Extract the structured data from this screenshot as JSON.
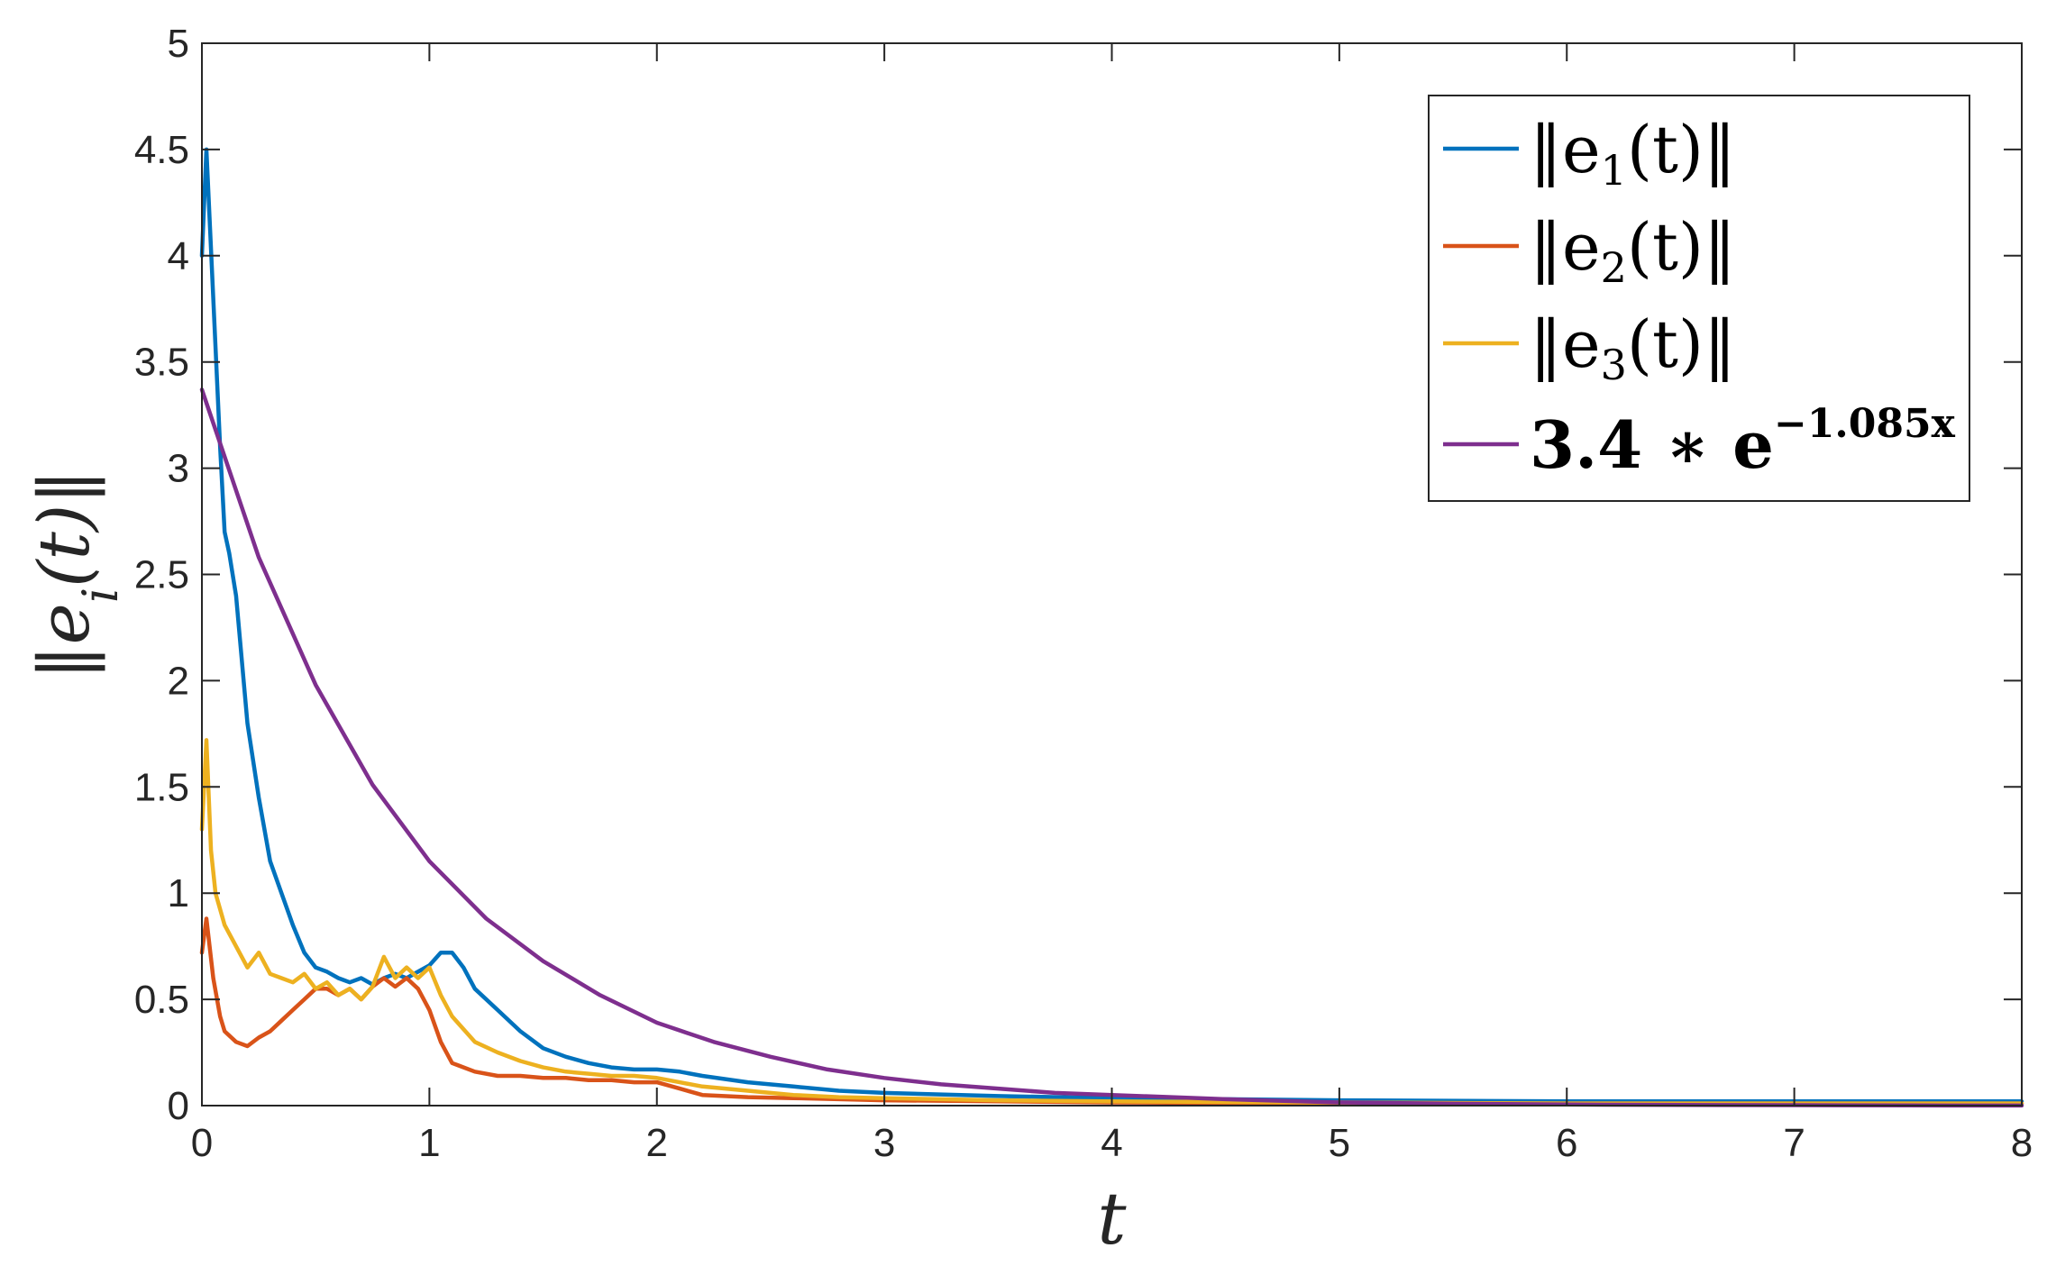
{
  "chart_data": {
    "type": "line",
    "xlabel": "t",
    "ylabel": "||e_i(t)||",
    "xlim": [
      0,
      8
    ],
    "ylim": [
      0,
      5
    ],
    "xticks": [
      "0",
      "1",
      "2",
      "3",
      "4",
      "5",
      "6",
      "7",
      "8"
    ],
    "yticks": [
      "0",
      "0.5",
      "1",
      "1.5",
      "2",
      "2.5",
      "3",
      "3.5",
      "4",
      "4.5",
      "5"
    ],
    "grid": false,
    "legend_position": "top-right",
    "series": [
      {
        "name": "||e_1(t)||",
        "legend": {
          "pre": "‖e",
          "sub": "1",
          "post": "(t)‖"
        },
        "color": "#0072BD",
        "x": [
          0,
          0.02,
          0.05,
          0.08,
          0.1,
          0.12,
          0.15,
          0.2,
          0.25,
          0.3,
          0.35,
          0.4,
          0.45,
          0.5,
          0.55,
          0.6,
          0.65,
          0.7,
          0.75,
          0.8,
          0.85,
          0.9,
          0.95,
          1.0,
          1.05,
          1.1,
          1.15,
          1.2,
          1.3,
          1.4,
          1.5,
          1.6,
          1.7,
          1.8,
          1.9,
          2.0,
          2.1,
          2.2,
          2.4,
          2.6,
          2.8,
          3.0,
          3.5,
          4.0,
          4.5,
          5.0,
          6.0,
          7.0,
          8.0
        ],
        "y": [
          4.0,
          4.5,
          3.8,
          3.1,
          2.7,
          2.6,
          2.4,
          1.8,
          1.45,
          1.15,
          1.0,
          0.85,
          0.72,
          0.65,
          0.63,
          0.6,
          0.58,
          0.6,
          0.57,
          0.6,
          0.62,
          0.6,
          0.63,
          0.66,
          0.72,
          0.72,
          0.65,
          0.55,
          0.45,
          0.35,
          0.27,
          0.23,
          0.2,
          0.18,
          0.17,
          0.17,
          0.16,
          0.14,
          0.11,
          0.09,
          0.07,
          0.06,
          0.045,
          0.035,
          0.03,
          0.025,
          0.02,
          0.02,
          0.02
        ]
      },
      {
        "name": "||e_2(t)||",
        "legend": {
          "pre": "‖e",
          "sub": "2",
          "post": "(t)‖"
        },
        "color": "#D95319",
        "x": [
          0,
          0.02,
          0.05,
          0.08,
          0.1,
          0.15,
          0.2,
          0.25,
          0.3,
          0.35,
          0.4,
          0.45,
          0.5,
          0.55,
          0.6,
          0.65,
          0.7,
          0.75,
          0.8,
          0.85,
          0.9,
          0.95,
          1.0,
          1.05,
          1.1,
          1.2,
          1.3,
          1.4,
          1.5,
          1.6,
          1.7,
          1.8,
          1.9,
          2.0,
          2.1,
          2.2,
          2.4,
          2.6,
          2.8,
          3.0,
          3.5,
          4.0,
          5.0,
          6.0,
          7.0,
          8.0
        ],
        "y": [
          0.72,
          0.88,
          0.6,
          0.42,
          0.35,
          0.3,
          0.28,
          0.32,
          0.35,
          0.4,
          0.45,
          0.5,
          0.55,
          0.55,
          0.52,
          0.55,
          0.5,
          0.56,
          0.6,
          0.56,
          0.6,
          0.55,
          0.45,
          0.3,
          0.2,
          0.16,
          0.14,
          0.14,
          0.13,
          0.13,
          0.12,
          0.12,
          0.11,
          0.11,
          0.08,
          0.05,
          0.04,
          0.035,
          0.03,
          0.025,
          0.02,
          0.015,
          0.01,
          0.01,
          0.01,
          0.01
        ]
      },
      {
        "name": "||e_3(t)||",
        "legend": {
          "pre": "‖e",
          "sub": "3",
          "post": "(t)‖"
        },
        "color": "#EDB120",
        "x": [
          0,
          0.02,
          0.04,
          0.06,
          0.1,
          0.15,
          0.2,
          0.25,
          0.3,
          0.35,
          0.4,
          0.45,
          0.5,
          0.55,
          0.6,
          0.65,
          0.7,
          0.75,
          0.8,
          0.85,
          0.9,
          0.95,
          1.0,
          1.05,
          1.1,
          1.2,
          1.3,
          1.4,
          1.5,
          1.6,
          1.7,
          1.8,
          1.9,
          2.0,
          2.1,
          2.2,
          2.4,
          2.6,
          2.8,
          3.0,
          3.5,
          4.0,
          5.0,
          6.0,
          7.0,
          8.0
        ],
        "y": [
          1.3,
          1.72,
          1.2,
          1.0,
          0.85,
          0.75,
          0.65,
          0.72,
          0.62,
          0.6,
          0.58,
          0.62,
          0.55,
          0.58,
          0.52,
          0.55,
          0.5,
          0.56,
          0.7,
          0.6,
          0.65,
          0.6,
          0.65,
          0.52,
          0.42,
          0.3,
          0.25,
          0.21,
          0.18,
          0.16,
          0.15,
          0.14,
          0.14,
          0.13,
          0.11,
          0.09,
          0.07,
          0.05,
          0.04,
          0.035,
          0.025,
          0.02,
          0.015,
          0.01,
          0.01,
          0.01
        ]
      },
      {
        "name": "3.4 * e^{-1.085x}",
        "legend": {
          "pre": "3.4 ∗ e",
          "sup": "−1.085x"
        },
        "color": "#7E2F8E",
        "x": [
          0,
          0.25,
          0.5,
          0.75,
          1.0,
          1.25,
          1.5,
          1.75,
          2.0,
          2.25,
          2.5,
          2.75,
          3.0,
          3.25,
          3.5,
          3.75,
          4.0,
          4.5,
          5.0,
          5.5,
          6.0,
          6.5,
          7.0,
          7.5,
          8.0
        ],
        "y": [
          3.37,
          2.58,
          1.98,
          1.51,
          1.15,
          0.88,
          0.68,
          0.52,
          0.39,
          0.3,
          0.23,
          0.17,
          0.13,
          0.1,
          0.08,
          0.06,
          0.05,
          0.03,
          0.015,
          0.009,
          0.005,
          0.003,
          0.002,
          0.001,
          0.0006
        ]
      }
    ]
  }
}
